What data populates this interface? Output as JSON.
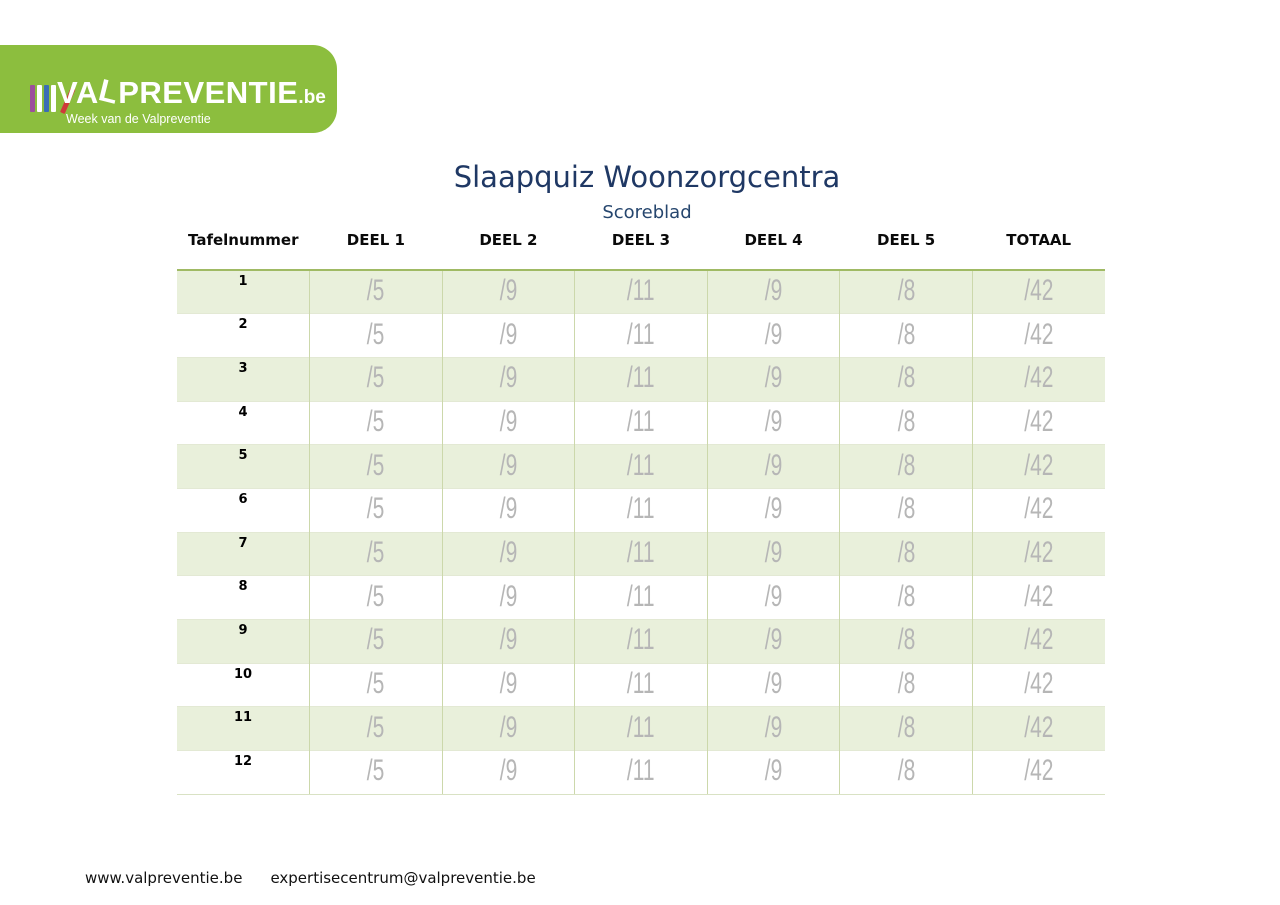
{
  "logo": {
    "brand_prefix": "VA",
    "brand_l": "L",
    "brand_suffix": "PREVENTIE",
    "brand_tld": ".be",
    "tagline": "Week van de Valpreventie"
  },
  "title": "Slaapquiz Woonzorgcentra",
  "subtitle": "Scoreblad",
  "table": {
    "headers": [
      "Tafelnummer",
      "DEEL 1",
      "DEEL 2",
      "DEEL 3",
      "DEEL 4",
      "DEEL 5",
      "TOTAAL"
    ],
    "rows": [
      {
        "num": "1",
        "values": [
          "/5",
          "/9",
          "/11",
          "/9",
          "/8",
          "/42"
        ]
      },
      {
        "num": "2",
        "values": [
          "/5",
          "/9",
          "/11",
          "/9",
          "/8",
          "/42"
        ]
      },
      {
        "num": "3",
        "values": [
          "/5",
          "/9",
          "/11",
          "/9",
          "/8",
          "/42"
        ]
      },
      {
        "num": "4",
        "values": [
          "/5",
          "/9",
          "/11",
          "/9",
          "/8",
          "/42"
        ]
      },
      {
        "num": "5",
        "values": [
          "/5",
          "/9",
          "/11",
          "/9",
          "/8",
          "/42"
        ]
      },
      {
        "num": "6",
        "values": [
          "/5",
          "/9",
          "/11",
          "/9",
          "/8",
          "/42"
        ]
      },
      {
        "num": "7",
        "values": [
          "/5",
          "/9",
          "/11",
          "/9",
          "/8",
          "/42"
        ]
      },
      {
        "num": "8",
        "values": [
          "/5",
          "/9",
          "/11",
          "/9",
          "/8",
          "/42"
        ]
      },
      {
        "num": "9",
        "values": [
          "/5",
          "/9",
          "/11",
          "/9",
          "/8",
          "/42"
        ]
      },
      {
        "num": "10",
        "values": [
          "/5",
          "/9",
          "/11",
          "/9",
          "/8",
          "/42"
        ]
      },
      {
        "num": "11",
        "values": [
          "/5",
          "/9",
          "/11",
          "/9",
          "/8",
          "/42"
        ]
      },
      {
        "num": "12",
        "values": [
          "/5",
          "/9",
          "/11",
          "/9",
          "/8",
          "/42"
        ]
      }
    ]
  },
  "footer": {
    "website": "www.valpreventie.be",
    "email": "expertisecentrum@valpreventie.be"
  },
  "colors": {
    "logo_green": "#8cbe3e",
    "title_navy": "#1f3864",
    "subtitle_navy": "#26466e",
    "row_green": "#e9f0db",
    "table_top_border": "#a0ba64",
    "grid_line": "#ccd8ab",
    "value_gray": "#b6b6b6",
    "icon_bar_purple": "#9c4f9c",
    "icon_bar_blue": "#3a6db5",
    "icon_bar_red": "#cf3a3a",
    "icon_bar_white": "#ffffff"
  }
}
